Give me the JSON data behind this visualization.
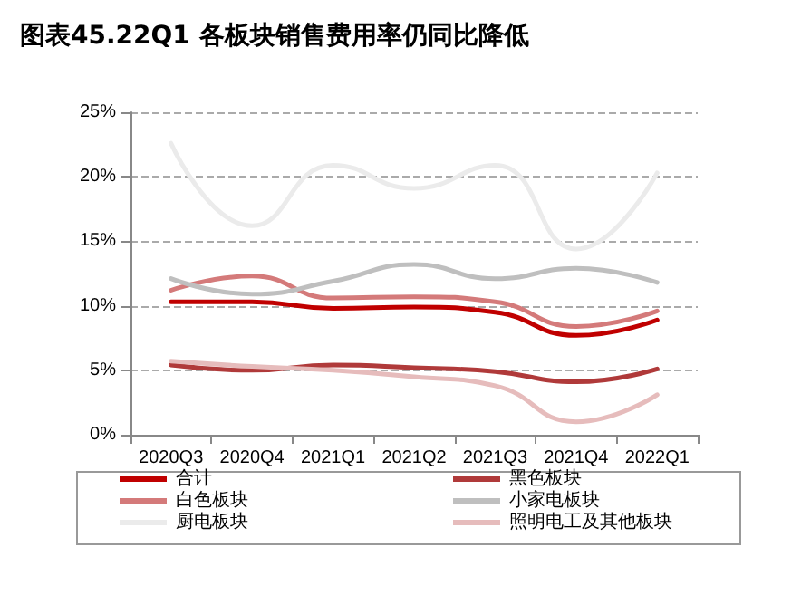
{
  "chart_data": {
    "type": "line",
    "title": "图表45.22Q1 各板块销售费用率仍同比降低",
    "categories": [
      "2020Q3",
      "2020Q4",
      "2021Q1",
      "2021Q2",
      "2021Q3",
      "2021Q4",
      "2022Q1"
    ],
    "series": [
      {
        "name": "合计",
        "color": "#c00000",
        "values": [
          10.3,
          10.3,
          9.8,
          9.9,
          9.5,
          7.7,
          8.9
        ]
      },
      {
        "name": "黑色板块",
        "color": "#b03a3a",
        "values": [
          5.4,
          5.0,
          5.4,
          5.2,
          4.9,
          4.1,
          5.1
        ]
      },
      {
        "name": "白色板块",
        "color": "#d47a7a",
        "values": [
          11.2,
          12.3,
          10.6,
          10.7,
          10.3,
          8.4,
          9.6
        ]
      },
      {
        "name": "小家电板块",
        "color": "#bfbfbf",
        "values": [
          12.1,
          10.9,
          11.9,
          13.2,
          12.1,
          12.9,
          11.8
        ]
      },
      {
        "name": "厨电板块",
        "color": "#ebebeb",
        "values": [
          22.6,
          16.2,
          20.9,
          19.1,
          20.9,
          14.4,
          20.3
        ]
      },
      {
        "name": "照明电工及其他板块",
        "color": "#e6bcbc",
        "values": [
          5.7,
          5.3,
          5.0,
          4.5,
          3.8,
          1.0,
          3.1
        ]
      }
    ],
    "ylim": [
      0,
      25
    ],
    "yticks": [
      {
        "value": 0,
        "label": "0%"
      },
      {
        "value": 5,
        "label": "5%"
      },
      {
        "value": 10,
        "label": "10%"
      },
      {
        "value": 15,
        "label": "15%"
      },
      {
        "value": 20,
        "label": "20%"
      },
      {
        "value": 25,
        "label": "25%"
      }
    ],
    "grid": "y",
    "legend": "bottom",
    "marker": "none",
    "line_style": "solid"
  }
}
